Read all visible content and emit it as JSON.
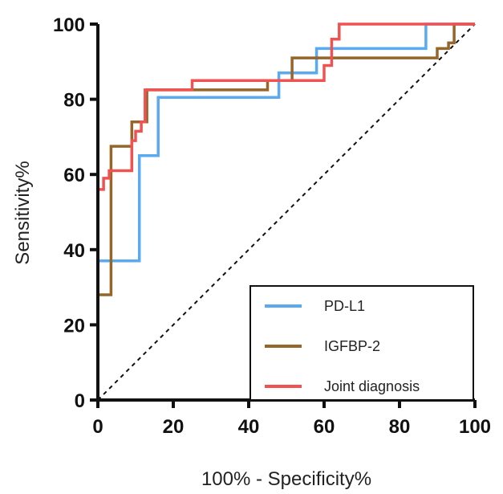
{
  "chart_data": {
    "type": "line",
    "xlabel": "100% - Specificity%",
    "ylabel": "Sensitivity%",
    "xlim": [
      0,
      100
    ],
    "ylim": [
      0,
      100
    ],
    "x_ticks": [
      0,
      20,
      40,
      60,
      80,
      100
    ],
    "y_ticks": [
      0,
      20,
      40,
      60,
      80,
      100
    ],
    "grid": false,
    "legend_position": "bottom-right",
    "reference_line": {
      "from": [
        0,
        0
      ],
      "to": [
        100,
        100
      ],
      "style": "dashed"
    },
    "series": [
      {
        "name": "PD-L1",
        "color": "#5aaaf2",
        "step": true,
        "points": [
          [
            0,
            0
          ],
          [
            0,
            37
          ],
          [
            11,
            37
          ],
          [
            11,
            65
          ],
          [
            16,
            65
          ],
          [
            16,
            80.5
          ],
          [
            48,
            80.5
          ],
          [
            48,
            87
          ],
          [
            58,
            87
          ],
          [
            58,
            93.5
          ],
          [
            87,
            93.5
          ],
          [
            87,
            100
          ],
          [
            100,
            100
          ]
        ]
      },
      {
        "name": "IGFBP-2",
        "color": "#94662a",
        "step": true,
        "points": [
          [
            0,
            0
          ],
          [
            0,
            28
          ],
          [
            3.5,
            28
          ],
          [
            3.5,
            67.5
          ],
          [
            9,
            67.5
          ],
          [
            9,
            74
          ],
          [
            13,
            74
          ],
          [
            13,
            82.5
          ],
          [
            45,
            82.5
          ],
          [
            45,
            85
          ],
          [
            51.5,
            85
          ],
          [
            51.5,
            91
          ],
          [
            90,
            91
          ],
          [
            90,
            93.5
          ],
          [
            93,
            93.5
          ],
          [
            93,
            95
          ],
          [
            94.5,
            95
          ],
          [
            94.5,
            100
          ],
          [
            100,
            100
          ]
        ]
      },
      {
        "name": "Joint diagnosis",
        "color": "#f05252",
        "step": true,
        "points": [
          [
            0,
            0
          ],
          [
            0,
            56
          ],
          [
            1.5,
            56
          ],
          [
            1.5,
            59
          ],
          [
            3,
            59
          ],
          [
            3,
            61
          ],
          [
            9,
            61
          ],
          [
            9,
            69
          ],
          [
            10,
            69
          ],
          [
            10,
            71.5
          ],
          [
            11.5,
            71.5
          ],
          [
            11.5,
            74
          ],
          [
            12.5,
            74
          ],
          [
            12.5,
            82.5
          ],
          [
            25,
            82.5
          ],
          [
            25,
            85
          ],
          [
            60,
            85
          ],
          [
            60,
            89
          ],
          [
            62,
            89
          ],
          [
            62,
            96
          ],
          [
            64,
            96
          ],
          [
            64,
            100
          ],
          [
            100,
            100
          ]
        ]
      }
    ]
  }
}
